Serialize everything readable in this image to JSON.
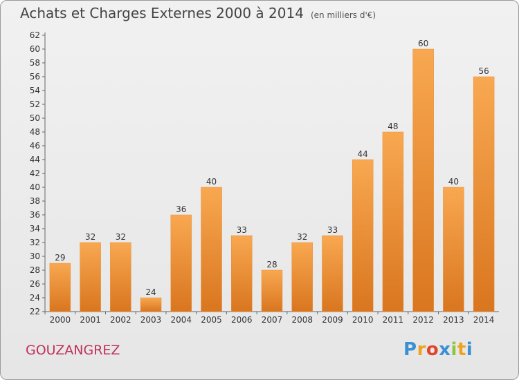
{
  "chart_data": {
    "type": "bar",
    "title": "Achats et Charges Externes 2000 à 2014",
    "unit": "(en milliers d'€)",
    "categories": [
      "2000",
      "2001",
      "2002",
      "2003",
      "2004",
      "2005",
      "2006",
      "2007",
      "2008",
      "2009",
      "2010",
      "2011",
      "2012",
      "2013",
      "2014"
    ],
    "values": [
      29,
      32,
      32,
      24,
      36,
      40,
      33,
      28,
      32,
      33,
      44,
      48,
      60,
      40,
      56
    ],
    "ylim": [
      22,
      62
    ],
    "yticks": [
      22,
      24,
      26,
      28,
      30,
      32,
      34,
      36,
      38,
      40,
      42,
      44,
      46,
      48,
      50,
      52,
      54,
      56,
      58,
      60,
      62
    ],
    "grid": false,
    "bar_color": "#f5a04a"
  },
  "commune": "GOUZANGREZ",
  "logo": {
    "letters": [
      "P",
      "r",
      "o",
      "x",
      "i",
      "t",
      "i"
    ],
    "colors": [
      "#3b8fd4",
      "#f0a21c",
      "#e0452b",
      "#3b8fd4",
      "#8cc63f",
      "#f0a21c",
      "#3b8fd4"
    ]
  }
}
